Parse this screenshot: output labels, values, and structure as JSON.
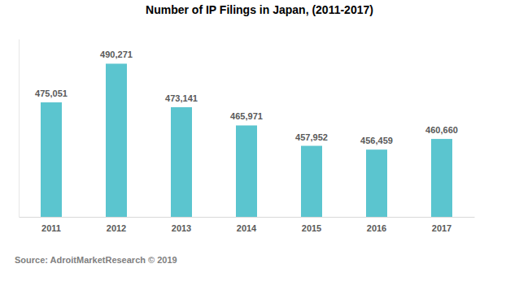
{
  "chart_data": {
    "type": "bar",
    "title": "Number of IP Filings in Japan, (2011-2017)",
    "categories": [
      "2011",
      "2012",
      "2013",
      "2014",
      "2015",
      "2016",
      "2017"
    ],
    "values": [
      475051,
      490271,
      473141,
      465971,
      457952,
      456459,
      460660
    ],
    "value_labels": [
      "475,051",
      "490,271",
      "473,141",
      "465,971",
      "457,952",
      "456,459",
      "460,660"
    ],
    "color": "#5bc5cf",
    "ylim": [
      430000,
      500000
    ],
    "grid": false,
    "data_labels": true,
    "tick_labels": "x",
    "annotations": [
      "Source: AdroitMarketResearch © 2019"
    ]
  }
}
